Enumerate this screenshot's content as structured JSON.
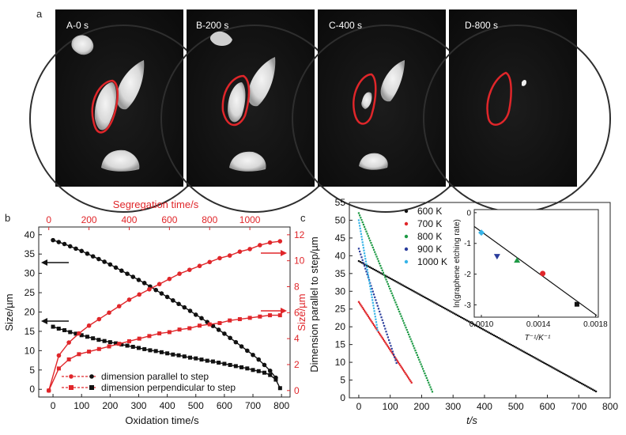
{
  "panels": [
    {
      "label": "a"
    },
    {
      "label": "b"
    },
    {
      "label": "c"
    }
  ],
  "micrographs": [
    {
      "label": "A-0 s"
    },
    {
      "label": "B-200 s"
    },
    {
      "label": "C-400 s"
    },
    {
      "label": "D-800 s"
    }
  ],
  "colors": {
    "black_series": "#111111",
    "red_series": "#e0262a",
    "green": "#1e9a45",
    "blue": "#2a3d9c",
    "cyan": "#36b4e8"
  },
  "chart_data": [
    {
      "type": "line",
      "panel": "b",
      "title": "",
      "xlabel": "Oxidation time/s",
      "ylabel": "Size/µm",
      "xlim": [
        -50,
        830
      ],
      "ylim": [
        -2,
        42
      ],
      "x_ticks": [
        0,
        100,
        200,
        300,
        400,
        500,
        600,
        700,
        800
      ],
      "y_ticks": [
        0,
        5,
        10,
        15,
        20,
        25,
        30,
        35,
        40
      ],
      "top_axis": {
        "label": "Segregation time/s",
        "range": [
          -50,
          1200
        ],
        "ticks": [
          0,
          200,
          400,
          600,
          800,
          1000
        ]
      },
      "right_axis": {
        "label": "Size/µm",
        "range": [
          -0.5,
          12.6
        ],
        "ticks": [
          0,
          2,
          4,
          6,
          8,
          10,
          12
        ]
      },
      "series": [
        {
          "name": "dimension parallel to step",
          "axis": "left-bottom",
          "color": "#111111",
          "x": [
            0,
            20,
            40,
            60,
            80,
            100,
            120,
            140,
            160,
            180,
            200,
            220,
            240,
            260,
            280,
            300,
            320,
            340,
            360,
            380,
            400,
            420,
            440,
            460,
            480,
            500,
            520,
            540,
            560,
            580,
            600,
            620,
            640,
            660,
            680,
            700,
            720,
            740,
            760,
            780
          ],
          "y": [
            38.6,
            38.1,
            37.6,
            37.0,
            36.4,
            35.8,
            35.1,
            34.4,
            33.7,
            33.0,
            32.3,
            31.5,
            30.7,
            29.9,
            29.1,
            28.3,
            27.5,
            26.6,
            25.7,
            24.8,
            23.9,
            23.0,
            22.1,
            21.2,
            20.3,
            19.3,
            18.4,
            17.4,
            16.4,
            15.4,
            14.4,
            13.3,
            12.2,
            11.1,
            10.0,
            8.9,
            7.7,
            6.3,
            4.8,
            3.0
          ]
        },
        {
          "name": "dimension perpendicular to step",
          "axis": "left-bottom",
          "color": "#111111",
          "x": [
            0,
            20,
            40,
            60,
            80,
            100,
            120,
            140,
            160,
            180,
            200,
            220,
            240,
            260,
            280,
            300,
            320,
            340,
            360,
            380,
            400,
            420,
            440,
            460,
            480,
            500,
            520,
            540,
            560,
            580,
            600,
            620,
            640,
            660,
            680,
            700,
            720,
            740,
            760,
            780,
            795
          ],
          "y": [
            16.2,
            15.7,
            15.3,
            14.8,
            14.4,
            14.0,
            13.6,
            13.2,
            12.8,
            12.5,
            12.2,
            11.9,
            11.6,
            11.3,
            11.0,
            10.7,
            10.4,
            10.1,
            9.9,
            9.6,
            9.3,
            9.0,
            8.8,
            8.5,
            8.2,
            8.0,
            7.7,
            7.4,
            7.2,
            6.9,
            6.6,
            6.3,
            6.0,
            5.7,
            5.4,
            5.0,
            4.7,
            4.3,
            3.7,
            2.5,
            0.3
          ]
        },
        {
          "name": "dimension parallel to step",
          "axis": "top-right",
          "color": "#e0262a",
          "x": [
            0,
            50,
            100,
            150,
            200,
            250,
            300,
            350,
            400,
            450,
            500,
            550,
            600,
            650,
            700,
            750,
            800,
            850,
            900,
            950,
            1000,
            1050,
            1100,
            1150
          ],
          "y": [
            0.0,
            2.7,
            3.7,
            4.4,
            5.0,
            5.5,
            6.0,
            6.5,
            7.0,
            7.4,
            7.8,
            8.2,
            8.6,
            9.0,
            9.3,
            9.6,
            9.9,
            10.2,
            10.4,
            10.7,
            10.9,
            11.2,
            11.4,
            11.5
          ]
        },
        {
          "name": "dimension perpendicular to step",
          "axis": "top-right",
          "color": "#e0262a",
          "x": [
            0,
            50,
            100,
            150,
            200,
            250,
            300,
            350,
            400,
            450,
            500,
            550,
            600,
            650,
            700,
            750,
            800,
            850,
            900,
            950,
            1000,
            1050,
            1100,
            1150
          ],
          "y": [
            0.0,
            1.7,
            2.4,
            2.8,
            3.0,
            3.2,
            3.4,
            3.6,
            3.8,
            4.0,
            4.2,
            4.4,
            4.5,
            4.7,
            4.8,
            5.0,
            5.1,
            5.2,
            5.4,
            5.5,
            5.6,
            5.7,
            5.8,
            5.8
          ]
        }
      ]
    },
    {
      "type": "scatter",
      "panel": "c",
      "title": "",
      "xlabel": "t/s",
      "ylabel": "Dimension parallel to step/µm",
      "xlim": [
        -30,
        800
      ],
      "ylim": [
        0,
        55
      ],
      "x_ticks": [
        0,
        100,
        200,
        300,
        400,
        500,
        600,
        700,
        800
      ],
      "y_ticks": [
        0,
        5,
        10,
        15,
        20,
        25,
        30,
        35,
        40,
        45,
        50,
        55
      ],
      "series": [
        {
          "name": "600 K",
          "color": "#111111",
          "x_start": 0,
          "x_end": 755,
          "y_start": 38.5,
          "y_end": 1.8
        },
        {
          "name": "700 K",
          "color": "#e0262a",
          "x_start": 0,
          "x_end": 170,
          "y_start": 27,
          "y_end": 4
        },
        {
          "name": "800 K",
          "color": "#1e9a45",
          "x_start": 0,
          "x_end": 235,
          "y_start": 52,
          "y_end": 1.5
        },
        {
          "name": "900 K",
          "color": "#2a3d9c",
          "x_start": 0,
          "x_end": 120,
          "y_start": 42,
          "y_end": 9.8
        },
        {
          "name": "1000 K",
          "color": "#36b4e8",
          "x_start": 0,
          "x_end": 60,
          "y_start": 50,
          "y_end": 19
        }
      ],
      "inset": {
        "type": "scatter",
        "xlabel": "T⁻¹/K⁻¹",
        "ylabel": "ln(graphene etching rate)",
        "xlim": [
          0.00095,
          0.00182
        ],
        "ylim": [
          -3.4,
          0.1
        ],
        "x_ticks": [
          "0.0010",
          "0.0014",
          "0.0018"
        ],
        "x_tick_values": [
          0.001,
          0.0014,
          0.0018
        ],
        "y_ticks": [
          "0",
          "-1",
          "-2",
          "-3"
        ],
        "y_tick_values": [
          0,
          -1,
          -2,
          -3
        ],
        "points": [
          {
            "series": "1000 K",
            "x": 0.001,
            "y": -0.65,
            "color": "#36b4e8",
            "marker": "diamond"
          },
          {
            "series": "900 K",
            "x": 0.00111,
            "y": -1.42,
            "color": "#2a3d9c",
            "marker": "triangle-down"
          },
          {
            "series": "800 K",
            "x": 0.00125,
            "y": -1.55,
            "color": "#1e9a45",
            "marker": "triangle-up"
          },
          {
            "series": "700 K",
            "x": 0.00143,
            "y": -1.98,
            "color": "#e0262a",
            "marker": "circle"
          },
          {
            "series": "600 K",
            "x": 0.00167,
            "y": -2.98,
            "color": "#111111",
            "marker": "square"
          }
        ],
        "fit": {
          "x": [
            0.00095,
            0.00181
          ],
          "y": [
            -0.45,
            -3.35
          ]
        }
      }
    }
  ]
}
